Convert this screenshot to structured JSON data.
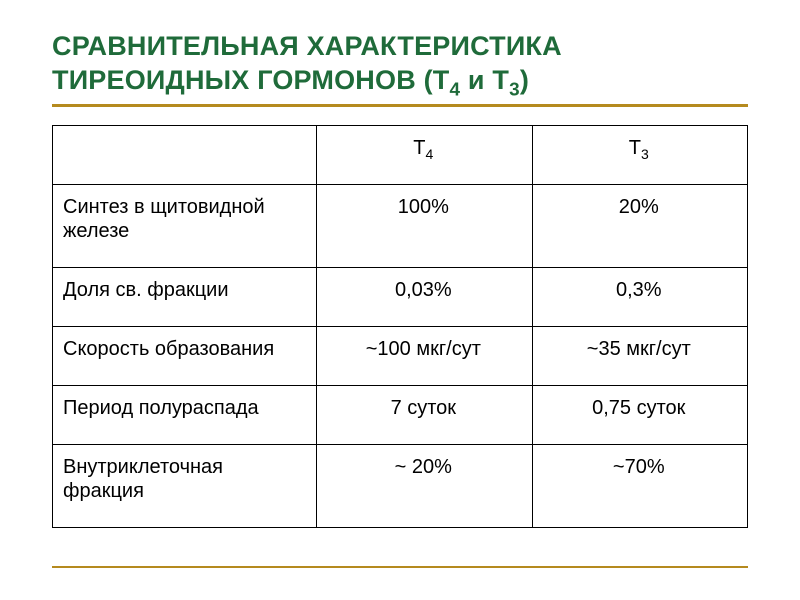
{
  "colors": {
    "title_text": "#1f6b3a",
    "rule": "#b58a1e",
    "table_border": "#000000",
    "body_text": "#000000",
    "background": "#ffffff"
  },
  "title": {
    "line1": "СРАВНИТЕЛЬНАЯ ХАРАКТЕРИСТИКА",
    "line2_pre": "ТИРЕОИДНЫХ ГОРМОНОВ (Т",
    "line2_sub1": "4",
    "line2_mid": " и Т",
    "line2_sub2": "3",
    "line2_post": ")",
    "fontsize_pt": 27,
    "font_weight": 700
  },
  "table": {
    "type": "table",
    "fontsize_pt": 20,
    "column_widths_pct": [
      38,
      31,
      31
    ],
    "alignments": [
      "left",
      "center",
      "center"
    ],
    "header": {
      "label": "",
      "col1_base": "Т",
      "col1_sub": "4",
      "col2_base": "Т",
      "col2_sub": "3"
    },
    "rows": [
      {
        "label": "Синтез в щитовидной железе",
        "t4": "100%",
        "t3": "20%"
      },
      {
        "label": "Доля св. фракции",
        "t4": "0,03%",
        "t3": "0,3%"
      },
      {
        "label": "Скорость образования",
        "t4": "~100 мкг/сут",
        "t3": "~35 мкг/сут"
      },
      {
        "label": "Период полураспада",
        "t4": "7 суток",
        "t3": "0,75 суток"
      },
      {
        "label": "Внутриклеточная фракция",
        "t4": "~ 20%",
        "t3": "~70%"
      }
    ]
  }
}
